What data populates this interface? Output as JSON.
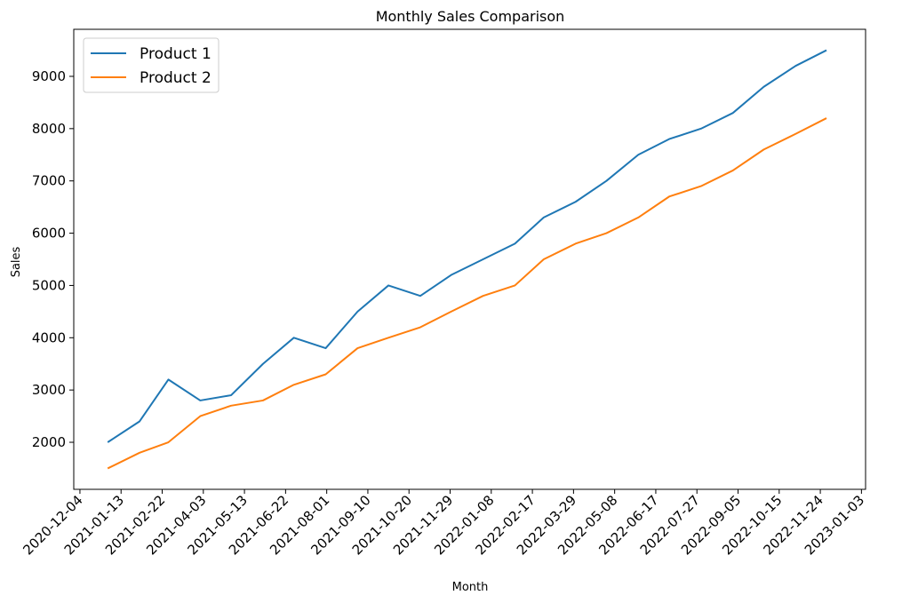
{
  "chart_data": {
    "type": "line",
    "title": "Monthly Sales Comparison",
    "xlabel": "Month",
    "ylabel": "Sales",
    "x": [
      "2020-12-31",
      "2021-01-31",
      "2021-02-28",
      "2021-03-31",
      "2021-04-30",
      "2021-05-31",
      "2021-06-30",
      "2021-07-31",
      "2021-08-31",
      "2021-09-30",
      "2021-10-31",
      "2021-11-30",
      "2021-12-31",
      "2022-01-31",
      "2022-02-28",
      "2022-03-31",
      "2022-04-30",
      "2022-05-31",
      "2022-06-30",
      "2022-07-31",
      "2022-08-31",
      "2022-09-30",
      "2022-10-31",
      "2022-11-30"
    ],
    "series": [
      {
        "name": "Product 1",
        "color": "#1f77b4",
        "values": [
          2000,
          2400,
          3200,
          2800,
          2900,
          3500,
          4000,
          3800,
          4500,
          5000,
          4800,
          5200,
          5500,
          5800,
          6300,
          6600,
          7000,
          7500,
          7800,
          8000,
          8300,
          8800,
          9200,
          9500
        ]
      },
      {
        "name": "Product 2",
        "color": "#ff7f0e",
        "values": [
          1500,
          1800,
          2000,
          2500,
          2700,
          2800,
          3100,
          3300,
          3800,
          4000,
          4200,
          4500,
          4800,
          5000,
          5500,
          5800,
          6000,
          6300,
          6700,
          6900,
          7200,
          7600,
          7900,
          8200
        ]
      }
    ],
    "xticks": [
      "2020-12-04",
      "2021-01-13",
      "2021-02-22",
      "2021-04-03",
      "2021-05-13",
      "2021-06-22",
      "2021-08-01",
      "2021-09-10",
      "2021-10-20",
      "2021-11-29",
      "2022-01-08",
      "2022-02-17",
      "2022-03-29",
      "2022-05-08",
      "2022-06-17",
      "2022-07-27",
      "2022-09-05",
      "2022-10-15",
      "2022-11-24",
      "2023-01-03"
    ],
    "yticks": [
      2000,
      3000,
      4000,
      5000,
      6000,
      7000,
      8000,
      9000
    ],
    "xlim": [
      "2020-11-28",
      "2023-01-07"
    ],
    "ylim": [
      1100,
      9900
    ],
    "grid": false,
    "legend": "upper left"
  }
}
